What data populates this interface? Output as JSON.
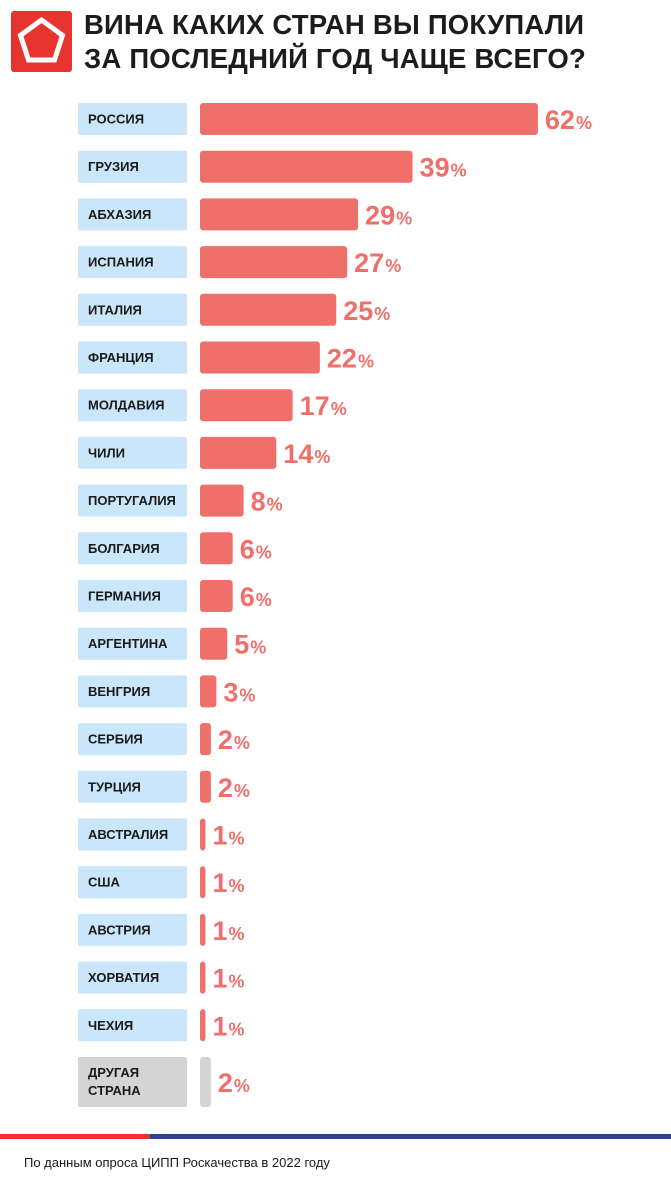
{
  "header": {
    "title_line1": "ВИНА КАКИХ СТРАН ВЫ ПОКУПАЛИ",
    "title_line2": "ЗА ПОСЛЕДНИЙ ГОД ЧАЩЕ ВСЕГО?"
  },
  "colors": {
    "brand_red": "#e8342f",
    "bar": "#ef6f6b",
    "bar_other": "#d4d4d4",
    "label_bg": "#c9e6fb",
    "label_bg_other": "#d4d4d4",
    "footer_blue": "#2e3f94"
  },
  "chart_data": {
    "type": "bar",
    "orientation": "horizontal",
    "categories": [
      "РОССИЯ",
      "ГРУЗИЯ",
      "АБХАЗИЯ",
      "ИСПАНИЯ",
      "ИТАЛИЯ",
      "ФРАНЦИЯ",
      "МОЛДАВИЯ",
      "ЧИЛИ",
      "ПОРТУГАЛИЯ",
      "БОЛГАРИЯ",
      "ГЕРМАНИЯ",
      "АРГЕНТИНА",
      "ВЕНГРИЯ",
      "СЕРБИЯ",
      "ТУРЦИЯ",
      "АВСТРАЛИЯ",
      "США",
      "АВСТРИЯ",
      "ХОРВАТИЯ",
      "ЧЕХИЯ",
      "ДРУГАЯ СТРАНА"
    ],
    "values": [
      62,
      39,
      29,
      27,
      25,
      22,
      17,
      14,
      8,
      6,
      6,
      5,
      3,
      2,
      2,
      1,
      1,
      1,
      1,
      1,
      2
    ],
    "value_suffix": "%",
    "highlight_other_last": true
  },
  "footer": {
    "source": "По данным опроса ЦИПП Роскачества в 2022 году"
  }
}
